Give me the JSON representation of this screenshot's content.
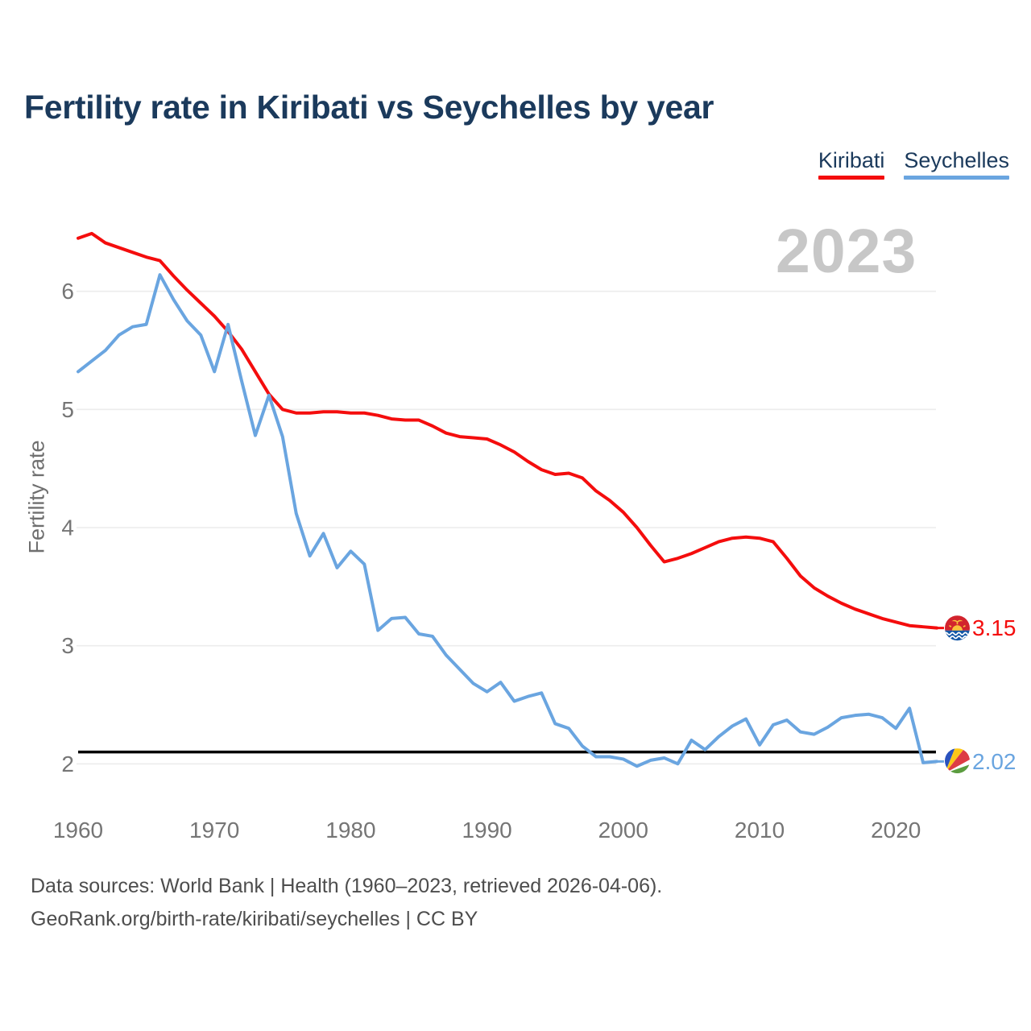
{
  "title": "Fertility rate in Kiribati vs Seychelles by year",
  "watermark": "2023",
  "legend": {
    "items": [
      {
        "label": "Kiribati",
        "color": "#f40d0d"
      },
      {
        "label": "Seychelles",
        "color": "#6aa5e0"
      }
    ]
  },
  "end_labels": [
    {
      "series": "Kiribati",
      "value": "3.15"
    },
    {
      "series": "Seychelles",
      "value": "2.02"
    }
  ],
  "footer": {
    "line1": "Data sources: World Bank | Health (1960–2023, retrieved 2026-04-06).",
    "line2": "GeoRank.org/birth-rate/kiribati/seychelles | CC BY"
  },
  "icons": {
    "kiribati": "kiribati-flag-icon",
    "seychelles": "seychelles-flag-icon"
  },
  "chart_data": {
    "type": "line",
    "title": "Fertility rate in Kiribati vs Seychelles by year",
    "xlabel": "",
    "ylabel": "Fertility rate",
    "grid": true,
    "legend_position": "top-right",
    "xlim": [
      1960,
      2023
    ],
    "ylim": [
      1.8,
      6.6
    ],
    "x_ticks": [
      1960,
      1970,
      1980,
      1990,
      2000,
      2010,
      2020
    ],
    "y_ticks": [
      2,
      3,
      4,
      5,
      6
    ],
    "reference_line_y": 2.1,
    "x": [
      1960,
      1961,
      1962,
      1963,
      1964,
      1965,
      1966,
      1967,
      1968,
      1969,
      1970,
      1971,
      1972,
      1973,
      1974,
      1975,
      1976,
      1977,
      1978,
      1979,
      1980,
      1981,
      1982,
      1983,
      1984,
      1985,
      1986,
      1987,
      1988,
      1989,
      1990,
      1991,
      1992,
      1993,
      1994,
      1995,
      1996,
      1997,
      1998,
      1999,
      2000,
      2001,
      2002,
      2003,
      2004,
      2005,
      2006,
      2007,
      2008,
      2009,
      2010,
      2011,
      2012,
      2013,
      2014,
      2015,
      2016,
      2017,
      2018,
      2019,
      2020,
      2021,
      2022,
      2023
    ],
    "series": [
      {
        "name": "Kiribati",
        "color": "#f40d0d",
        "final_value": 3.15,
        "values": [
          6.45,
          6.49,
          6.41,
          6.37,
          6.33,
          6.29,
          6.26,
          6.13,
          6.01,
          5.9,
          5.79,
          5.66,
          5.51,
          5.32,
          5.13,
          5.0,
          4.97,
          4.97,
          4.98,
          4.98,
          4.97,
          4.97,
          4.95,
          4.92,
          4.91,
          4.91,
          4.86,
          4.8,
          4.77,
          4.76,
          4.75,
          4.7,
          4.64,
          4.56,
          4.49,
          4.45,
          4.46,
          4.42,
          4.31,
          4.23,
          4.13,
          4.0,
          3.85,
          3.71,
          3.74,
          3.78,
          3.83,
          3.88,
          3.91,
          3.92,
          3.91,
          3.88,
          3.74,
          3.59,
          3.49,
          3.42,
          3.36,
          3.31,
          3.27,
          3.23,
          3.2,
          3.17,
          3.16,
          3.15
        ]
      },
      {
        "name": "Seychelles",
        "color": "#6aa5e0",
        "final_value": 2.02,
        "values": [
          5.32,
          5.41,
          5.5,
          5.63,
          5.7,
          5.72,
          6.14,
          5.93,
          5.75,
          5.63,
          5.32,
          5.72,
          5.24,
          4.78,
          5.12,
          4.77,
          4.12,
          3.76,
          3.95,
          3.66,
          3.8,
          3.69,
          3.13,
          3.23,
          3.24,
          3.1,
          3.08,
          2.92,
          2.8,
          2.68,
          2.61,
          2.69,
          2.53,
          2.57,
          2.6,
          2.34,
          2.3,
          2.15,
          2.06,
          2.06,
          2.04,
          1.98,
          2.03,
          2.05,
          2.0,
          2.2,
          2.12,
          2.23,
          2.32,
          2.38,
          2.16,
          2.33,
          2.37,
          2.27,
          2.25,
          2.31,
          2.39,
          2.41,
          2.42,
          2.39,
          2.3,
          2.47,
          2.01,
          2.02
        ]
      }
    ]
  }
}
